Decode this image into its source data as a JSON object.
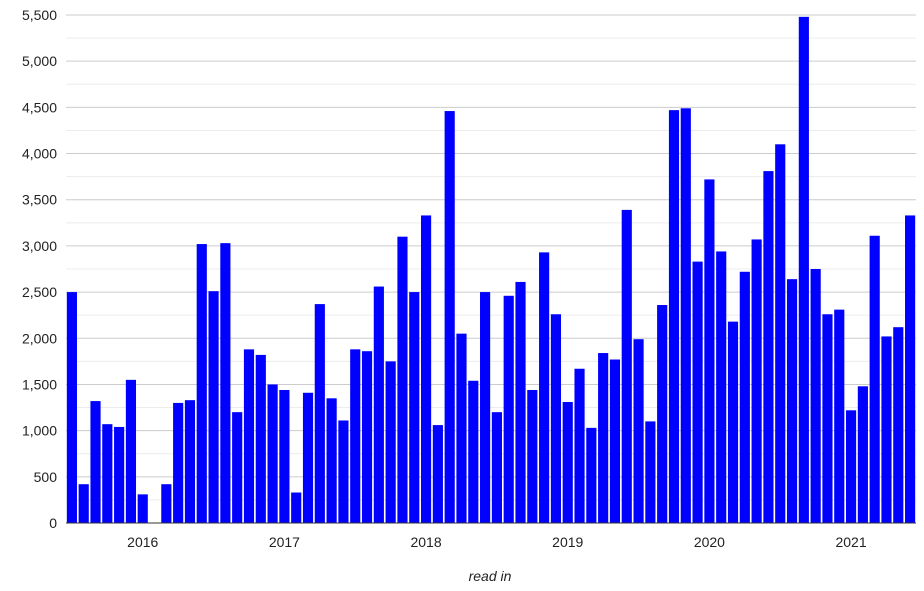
{
  "chart_data": {
    "type": "bar",
    "xlabel": "read in",
    "ylabel": "",
    "ylim": [
      0,
      5500
    ],
    "yticks": [
      0,
      500,
      1000,
      1500,
      2000,
      2500,
      3000,
      3500,
      4000,
      4500,
      5000,
      5500
    ],
    "ytick_labels": [
      "0",
      "500",
      "1,000",
      "1,500",
      "2,000",
      "2,500",
      "3,000",
      "3,500",
      "4,000",
      "4,500",
      "5,000",
      "5,500"
    ],
    "year_labels": [
      "2016",
      "2017",
      "2018",
      "2019",
      "2020",
      "2021"
    ],
    "year_label_positions": [
      6,
      18,
      30,
      42,
      54,
      66
    ],
    "grid": true,
    "bar_color": "#0000ff",
    "values": [
      2500,
      420,
      1320,
      1070,
      1040,
      1550,
      310,
      0,
      420,
      1300,
      1330,
      3020,
      2510,
      3030,
      1200,
      1880,
      1820,
      1500,
      1440,
      330,
      1410,
      2370,
      1350,
      1110,
      1880,
      1860,
      2560,
      1750,
      3100,
      2500,
      3330,
      1060,
      4460,
      2050,
      1540,
      2500,
      1200,
      2460,
      2610,
      1440,
      2930,
      2260,
      1310,
      1670,
      1030,
      1840,
      1770,
      3390,
      1990,
      1100,
      2360,
      4470,
      4490,
      2830,
      3720,
      2940,
      2180,
      2720,
      3070,
      3810,
      4100,
      2640,
      5480,
      2750,
      2260,
      2310,
      1220,
      1480,
      3110,
      2020,
      2120,
      3330
    ]
  }
}
